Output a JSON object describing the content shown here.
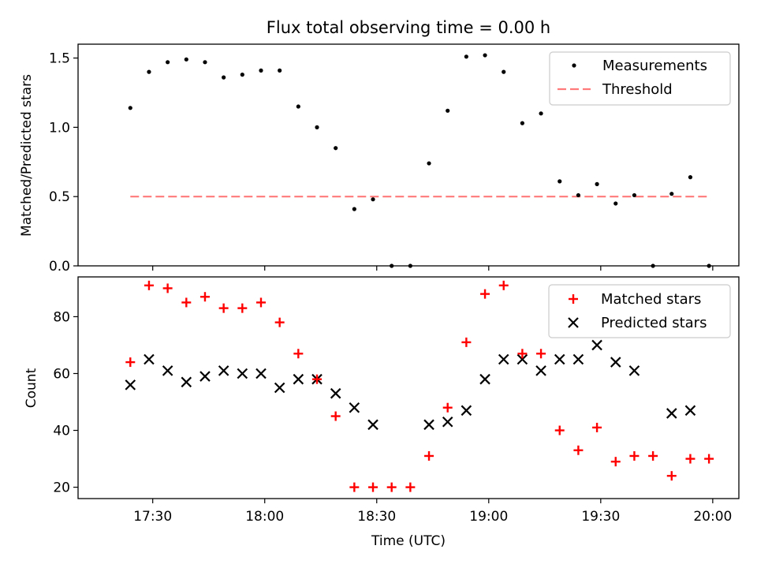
{
  "chart_data": [
    {
      "type": "scatter",
      "title": "Flux total observing time = 0.00 h",
      "ylabel": "Matched/Predicted stars",
      "xlabel": "",
      "ylim": [
        0,
        1.6
      ],
      "yticks": [
        0.0,
        0.5,
        1.0,
        1.5
      ],
      "ytick_labels": [
        "0.0",
        "0.5",
        "1.0",
        "1.5"
      ],
      "legend_position": "top-right",
      "threshold": {
        "name": "Threshold",
        "value": 0.5,
        "x_range": [
          "17:24",
          "19:59"
        ],
        "color": "#ff7a7a"
      },
      "series": [
        {
          "name": "Measurements",
          "color": "#000000",
          "points": [
            {
              "x": "17:24",
              "y": 1.14
            },
            {
              "x": "17:29",
              "y": 1.4
            },
            {
              "x": "17:34",
              "y": 1.47
            },
            {
              "x": "17:39",
              "y": 1.49
            },
            {
              "x": "17:44",
              "y": 1.47
            },
            {
              "x": "17:49",
              "y": 1.36
            },
            {
              "x": "17:54",
              "y": 1.38
            },
            {
              "x": "17:59",
              "y": 1.41
            },
            {
              "x": "18:04",
              "y": 1.41
            },
            {
              "x": "18:09",
              "y": 1.15
            },
            {
              "x": "18:14",
              "y": 1.0
            },
            {
              "x": "18:19",
              "y": 0.85
            },
            {
              "x": "18:24",
              "y": 0.41
            },
            {
              "x": "18:29",
              "y": 0.48
            },
            {
              "x": "18:34",
              "y": 0.0
            },
            {
              "x": "18:39",
              "y": 0.0
            },
            {
              "x": "18:44",
              "y": 0.74
            },
            {
              "x": "18:49",
              "y": 1.12
            },
            {
              "x": "18:54",
              "y": 1.51
            },
            {
              "x": "18:59",
              "y": 1.52
            },
            {
              "x": "19:04",
              "y": 1.4
            },
            {
              "x": "19:09",
              "y": 1.03
            },
            {
              "x": "19:14",
              "y": 1.1
            },
            {
              "x": "19:19",
              "y": 0.61
            },
            {
              "x": "19:24",
              "y": 0.51
            },
            {
              "x": "19:29",
              "y": 0.59
            },
            {
              "x": "19:34",
              "y": 0.45
            },
            {
              "x": "19:39",
              "y": 0.51
            },
            {
              "x": "19:44",
              "y": 0.0
            },
            {
              "x": "19:49",
              "y": 0.52
            },
            {
              "x": "19:54",
              "y": 0.64
            },
            {
              "x": "19:59",
              "y": 0.0
            }
          ]
        }
      ]
    },
    {
      "type": "scatter",
      "xlabel": "Time (UTC)",
      "ylabel": "Count",
      "ylim": [
        16,
        94
      ],
      "yticks": [
        20,
        40,
        60,
        80
      ],
      "ytick_labels": [
        "20",
        "40",
        "60",
        "80"
      ],
      "xticks": [
        "17:30",
        "18:00",
        "18:30",
        "19:00",
        "19:30",
        "20:00"
      ],
      "xtick_labels": [
        "17:30",
        "18:00",
        "18:30",
        "19:00",
        "19:30",
        "20:00"
      ],
      "xlim": [
        "17:10",
        "20:07"
      ],
      "legend_position": "top-right",
      "series": [
        {
          "name": "Matched stars",
          "marker": "plus",
          "color": "#ff0000",
          "points": [
            {
              "x": "17:24",
              "y": 64
            },
            {
              "x": "17:29",
              "y": 91
            },
            {
              "x": "17:34",
              "y": 90
            },
            {
              "x": "17:39",
              "y": 85
            },
            {
              "x": "17:44",
              "y": 87
            },
            {
              "x": "17:49",
              "y": 83
            },
            {
              "x": "17:54",
              "y": 83
            },
            {
              "x": "17:59",
              "y": 85
            },
            {
              "x": "18:04",
              "y": 78
            },
            {
              "x": "18:09",
              "y": 67
            },
            {
              "x": "18:14",
              "y": 58
            },
            {
              "x": "18:19",
              "y": 45
            },
            {
              "x": "18:24",
              "y": 20
            },
            {
              "x": "18:29",
              "y": 20
            },
            {
              "x": "18:34",
              "y": 20
            },
            {
              "x": "18:39",
              "y": 20
            },
            {
              "x": "18:44",
              "y": 31
            },
            {
              "x": "18:49",
              "y": 48
            },
            {
              "x": "18:54",
              "y": 71
            },
            {
              "x": "18:59",
              "y": 88
            },
            {
              "x": "19:04",
              "y": 91
            },
            {
              "x": "19:09",
              "y": 67
            },
            {
              "x": "19:14",
              "y": 67
            },
            {
              "x": "19:19",
              "y": 40
            },
            {
              "x": "19:24",
              "y": 33
            },
            {
              "x": "19:29",
              "y": 41
            },
            {
              "x": "19:34",
              "y": 29
            },
            {
              "x": "19:39",
              "y": 31
            },
            {
              "x": "19:44",
              "y": 31
            },
            {
              "x": "19:49",
              "y": 24
            },
            {
              "x": "19:54",
              "y": 30
            },
            {
              "x": "19:59",
              "y": 30
            }
          ]
        },
        {
          "name": "Predicted stars",
          "marker": "x",
          "color": "#000000",
          "points": [
            {
              "x": "17:24",
              "y": 56
            },
            {
              "x": "17:29",
              "y": 65
            },
            {
              "x": "17:34",
              "y": 61
            },
            {
              "x": "17:39",
              "y": 57
            },
            {
              "x": "17:44",
              "y": 59
            },
            {
              "x": "17:49",
              "y": 61
            },
            {
              "x": "17:54",
              "y": 60
            },
            {
              "x": "17:59",
              "y": 60
            },
            {
              "x": "18:04",
              "y": 55
            },
            {
              "x": "18:09",
              "y": 58
            },
            {
              "x": "18:14",
              "y": 58
            },
            {
              "x": "18:19",
              "y": 53
            },
            {
              "x": "18:24",
              "y": 48
            },
            {
              "x": "18:29",
              "y": 42
            },
            {
              "x": "18:44",
              "y": 42
            },
            {
              "x": "18:49",
              "y": 43
            },
            {
              "x": "18:54",
              "y": 47
            },
            {
              "x": "18:59",
              "y": 58
            },
            {
              "x": "19:04",
              "y": 65
            },
            {
              "x": "19:09",
              "y": 65
            },
            {
              "x": "19:14",
              "y": 61
            },
            {
              "x": "19:19",
              "y": 65
            },
            {
              "x": "19:24",
              "y": 65
            },
            {
              "x": "19:29",
              "y": 70
            },
            {
              "x": "19:34",
              "y": 64
            },
            {
              "x": "19:39",
              "y": 61
            },
            {
              "x": "19:49",
              "y": 46
            },
            {
              "x": "19:54",
              "y": 47
            }
          ]
        }
      ]
    }
  ]
}
